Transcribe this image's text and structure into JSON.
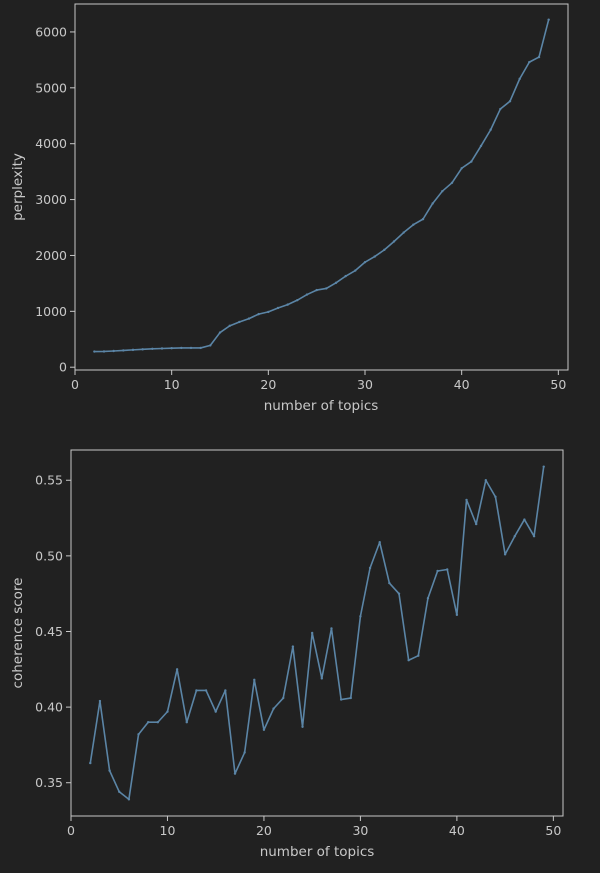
{
  "colors": {
    "background": "#212121",
    "axis": "#c8c8c8",
    "line": "#5b85a6"
  },
  "chart_data": [
    {
      "type": "line",
      "title": "",
      "xlabel": "number of topics",
      "ylabel": "perplexity",
      "xlim": [
        0,
        51
      ],
      "ylim": [
        -50,
        6500
      ],
      "xticks": [
        "0",
        "10",
        "20",
        "30",
        "40",
        "50"
      ],
      "yticks": [
        "0",
        "1000",
        "2000",
        "3000",
        "4000",
        "5000",
        "6000"
      ],
      "grid": false,
      "series": [
        {
          "x": [
            2,
            3,
            4,
            5,
            6,
            7,
            8,
            9,
            10,
            11,
            12,
            13,
            14,
            15,
            16,
            17,
            18,
            19,
            20,
            21,
            22,
            23,
            24,
            25,
            26,
            27,
            28,
            29,
            30,
            31,
            32,
            33,
            34,
            35,
            36,
            37,
            38,
            39,
            40,
            41,
            42,
            43,
            44,
            45,
            46,
            47,
            48,
            49
          ],
          "values": [
            280,
            282,
            290,
            300,
            310,
            320,
            330,
            335,
            340,
            345,
            345,
            345,
            390,
            620,
            740,
            810,
            870,
            950,
            990,
            1060,
            1120,
            1200,
            1300,
            1380,
            1410,
            1510,
            1630,
            1730,
            1880,
            1980,
            2100,
            2250,
            2410,
            2550,
            2650,
            2930,
            3150,
            3300,
            3560,
            3680,
            3960,
            4250,
            4620,
            4760,
            5160,
            5460,
            5550,
            6220
          ]
        }
      ]
    },
    {
      "type": "line",
      "title": "",
      "xlabel": "number of topics",
      "ylabel": "coherence score",
      "xlim": [
        0,
        51
      ],
      "ylim": [
        0.328,
        0.57
      ],
      "xticks": [
        "0",
        "10",
        "20",
        "30",
        "40",
        "50"
      ],
      "yticks": [
        "0.35",
        "0.40",
        "0.45",
        "0.50",
        "0.55"
      ],
      "grid": false,
      "series": [
        {
          "x": [
            2,
            3,
            4,
            5,
            6,
            7,
            8,
            9,
            10,
            11,
            12,
            13,
            14,
            15,
            16,
            17,
            18,
            19,
            20,
            21,
            22,
            23,
            24,
            25,
            26,
            27,
            28,
            29,
            30,
            31,
            32,
            33,
            34,
            35,
            36,
            37,
            38,
            39,
            40,
            41,
            42,
            43,
            44,
            45,
            46,
            47,
            48,
            49
          ],
          "values": [
            0.363,
            0.404,
            0.358,
            0.344,
            0.339,
            0.382,
            0.39,
            0.39,
            0.397,
            0.425,
            0.39,
            0.411,
            0.411,
            0.397,
            0.411,
            0.356,
            0.37,
            0.418,
            0.385,
            0.399,
            0.406,
            0.44,
            0.387,
            0.449,
            0.419,
            0.452,
            0.405,
            0.406,
            0.46,
            0.492,
            0.509,
            0.482,
            0.475,
            0.431,
            0.434,
            0.472,
            0.49,
            0.491,
            0.461,
            0.537,
            0.521,
            0.55,
            0.539,
            0.501,
            0.513,
            0.524,
            0.513,
            0.559
          ]
        }
      ]
    }
  ]
}
